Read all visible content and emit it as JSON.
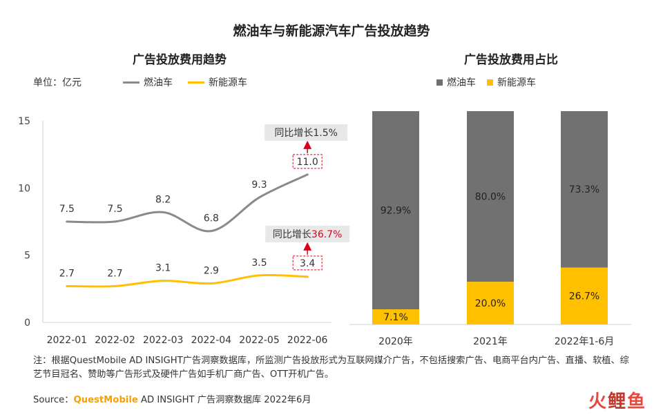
{
  "title": "燃油车与新能源汽车广告投放趋势",
  "colors": {
    "fuel": "#8a8a8a",
    "ev": "#ffc000",
    "ann_arrow": "#d9001b"
  },
  "chart_data": [
    {
      "type": "line",
      "title": "广告投放费用趋势",
      "unit_label": "单位：亿元",
      "categories": [
        "2022-01",
        "2022-02",
        "2022-03",
        "2022-04",
        "2022-05",
        "2022-06"
      ],
      "series": [
        {
          "name": "燃油车",
          "values": [
            7.5,
            7.5,
            8.2,
            6.8,
            9.3,
            11.0
          ],
          "labels": [
            "7.5",
            "7.5",
            "8.2",
            "6.8",
            "9.3",
            "11.0"
          ]
        },
        {
          "name": "新能源车",
          "values": [
            2.7,
            2.7,
            3.1,
            2.9,
            3.5,
            3.4
          ],
          "labels": [
            "2.7",
            "2.7",
            "3.1",
            "2.9",
            "3.5",
            "3.4"
          ]
        }
      ],
      "ylim": [
        0,
        15
      ],
      "yticks": [
        "0",
        "5",
        "10",
        "15"
      ],
      "annotations": {
        "fuel": {
          "prefix": "同比增长",
          "value": "1.5%"
        },
        "ev": {
          "prefix": "同比增长",
          "value": "36.7%"
        }
      }
    },
    {
      "type": "bar",
      "stacked": true,
      "title": "广告投放费用占比",
      "categories": [
        "2020年",
        "2021年",
        "2022年1-6月"
      ],
      "series": [
        {
          "name": "燃油车",
          "values": [
            92.9,
            80.0,
            73.3
          ],
          "labels": [
            "92.9%",
            "80.0%",
            "73.3%"
          ]
        },
        {
          "name": "新能源车",
          "values": [
            7.1,
            20.0,
            26.7
          ],
          "labels": [
            "7.1%",
            "20.0%",
            "26.7%"
          ]
        }
      ],
      "ylim": [
        0,
        100
      ]
    }
  ],
  "note": "注：根据QuestMobile AD INSIGHT广告洞察数据库，所监测广告投放形式为互联网媒介广告，不包括搜索广告、电商平台内广告、直播、软植、综艺节目冠名、赞助等广告形式及硬件广告如手机厂商广告、OTT开机广告。",
  "source": {
    "prefix": "Source：",
    "brand": "QuestMobile",
    "rest": " AD INSIGHT 广告洞察数据库 2022年6月"
  },
  "logo": {
    "c1": "火",
    "c2": "鲤",
    "c3": "鱼"
  }
}
